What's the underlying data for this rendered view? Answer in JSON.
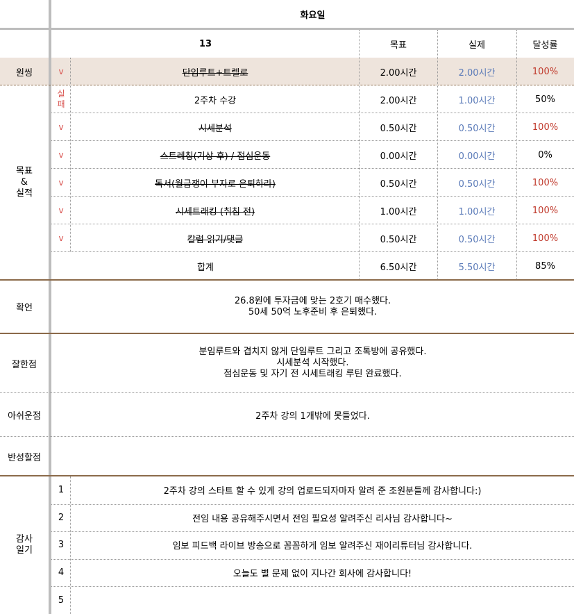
{
  "header": {
    "day": "화요일"
  },
  "columns": {
    "number": "13",
    "target": "목표",
    "actual": "실제",
    "rate": "달성률"
  },
  "warmup": {
    "label": "원씽",
    "mark": "v",
    "task": "단임루트+트렐로",
    "target": "2.00시간",
    "actual": "2.00시간",
    "rate": "100%"
  },
  "goals": {
    "label": "목표\n&\n실적",
    "rows": [
      {
        "mark": "실\n패",
        "task": "2주차 수강",
        "target": "2.00시간",
        "actual": "1.00시간",
        "rate": "50%"
      },
      {
        "mark": "v",
        "task": "시세분석",
        "target": "0.50시간",
        "actual": "0.50시간",
        "rate": "100%"
      },
      {
        "mark": "v",
        "task": "스트레칭(기상 후) / 점심운동",
        "target": "0.00시간",
        "actual": "0.00시간",
        "rate": "0%"
      },
      {
        "mark": "v",
        "task": "독서(월급쟁이 부자로 은퇴하라)",
        "target": "0.50시간",
        "actual": "0.50시간",
        "rate": "100%"
      },
      {
        "mark": "v",
        "task": "시세트래킹 (취침 전)",
        "target": "1.00시간",
        "actual": "1.00시간",
        "rate": "100%"
      },
      {
        "mark": "v",
        "task": "칼럼 읽기/댓글",
        "target": "0.50시간",
        "actual": "0.50시간",
        "rate": "100%"
      }
    ],
    "total": {
      "label": "합계",
      "target": "6.50시간",
      "actual": "5.50시간",
      "rate": "85%"
    }
  },
  "affirmation": {
    "label": "확언",
    "lines": [
      "26.8원에 투자금에 맞는 2호기 매수했다.",
      "50세 50억 노후준비 후 은퇴했다."
    ]
  },
  "good": {
    "label": "잘한점",
    "lines": [
      "분임루트와 겹치지 않게 단임루트 그리고 조톡방에 공유했다.",
      "시세분석 시작했다.",
      "점심운동 및 자기 전 시세트래킹 루틴 완료했다."
    ]
  },
  "regret": {
    "label": "아쉬운점",
    "text": "2주차 강의 1개밖에 못들었다."
  },
  "reflect": {
    "label": "반성할점",
    "text": ""
  },
  "gratitude": {
    "label": "감사\n일기",
    "items": [
      {
        "num": "1",
        "text": "2주차 강의 스타트 할 수 있게 강의 업로드되자마자 알려 준 조원분들께 감사합니다:)"
      },
      {
        "num": "2",
        "text": "전임 내용 공유해주시면서 전임 필요성 알려주신 리사님 감사합니다~"
      },
      {
        "num": "3",
        "text": "임보 피드백 라이브 방송으로 꼼꼼하게 임보 알려주신 재이리튜터님 감사합니다."
      },
      {
        "num": "4",
        "text": "오늘도 별 문제 없이 지나간 회사에 감사합니다!"
      },
      {
        "num": "5",
        "text": ""
      }
    ]
  },
  "colors": {
    "warmup_bg": "#eee4dc",
    "section_line": "#8b6a4a",
    "blue": "#5a7ab8",
    "red": "#c0392b"
  }
}
